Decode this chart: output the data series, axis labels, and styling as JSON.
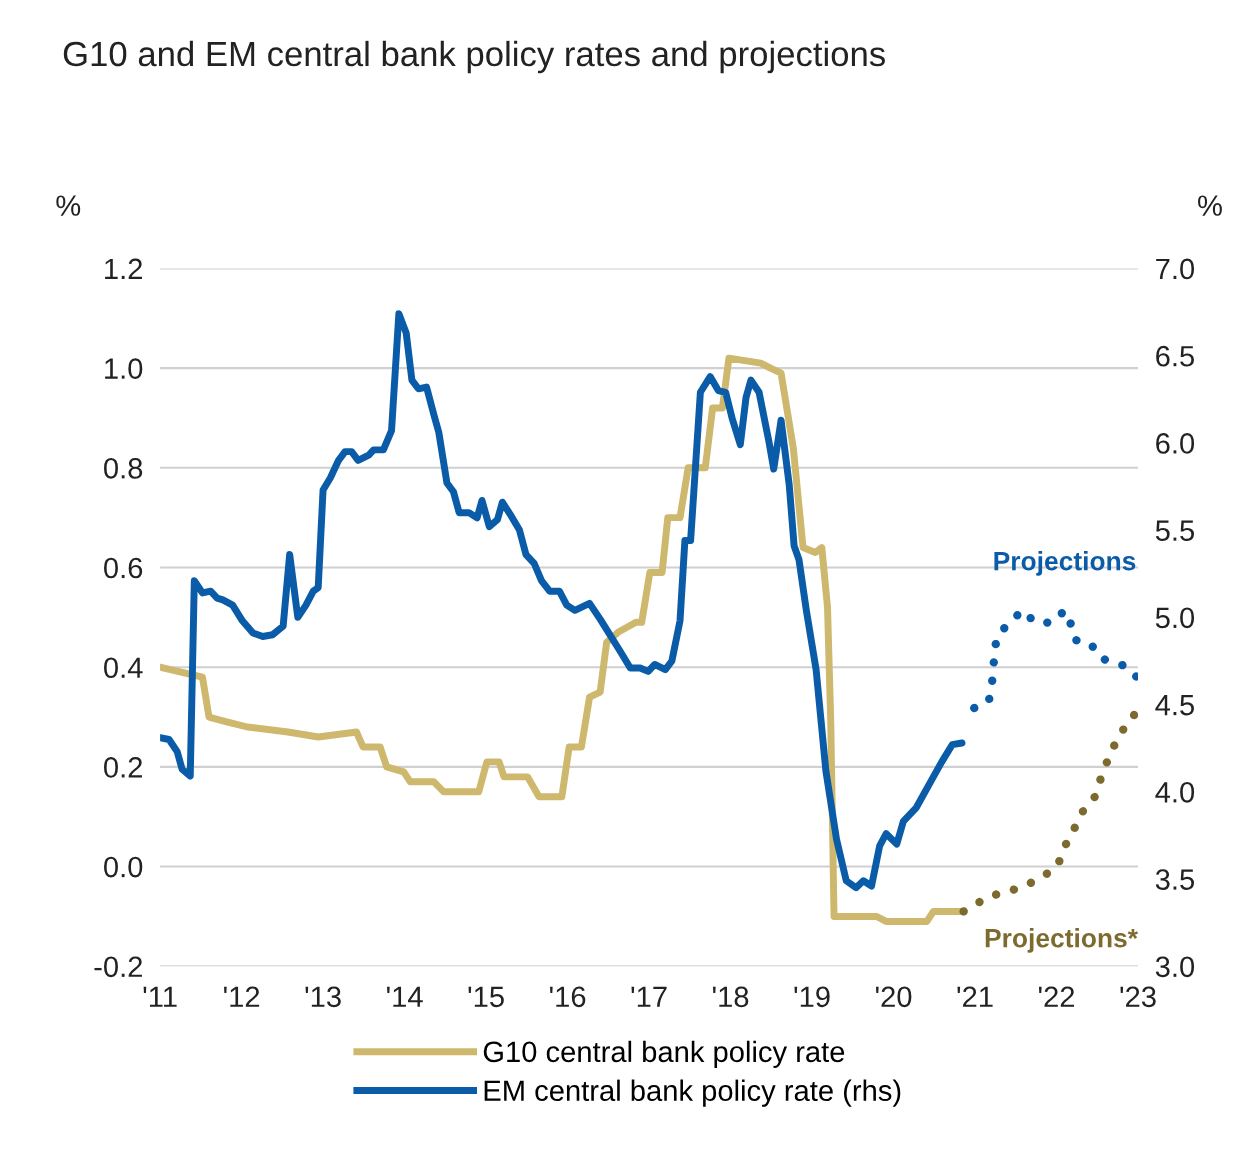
{
  "chart_data": {
    "type": "line",
    "title": "G10 and EM central bank policy rates and projections",
    "ylabel": "%",
    "y2label": "%",
    "xlim": [
      2011,
      2023
    ],
    "xticks": [
      {
        "value": 2011,
        "label": "'11"
      },
      {
        "value": 2012,
        "label": "'12"
      },
      {
        "value": 2013,
        "label": "'13"
      },
      {
        "value": 2014,
        "label": "'14"
      },
      {
        "value": 2015,
        "label": "'15"
      },
      {
        "value": 2016,
        "label": "'16"
      },
      {
        "value": 2017,
        "label": "'17"
      },
      {
        "value": 2018,
        "label": "'18"
      },
      {
        "value": 2019,
        "label": "'19"
      },
      {
        "value": 2020,
        "label": "'20"
      },
      {
        "value": 2021,
        "label": "'21"
      },
      {
        "value": 2022,
        "label": "'22"
      },
      {
        "value": 2023,
        "label": "'23"
      }
    ],
    "ylim": [
      -0.2,
      1.2
    ],
    "yticks": [
      {
        "value": -0.2,
        "label": "-0.2"
      },
      {
        "value": 0.0,
        "label": "0.0"
      },
      {
        "value": 0.2,
        "label": "0.2"
      },
      {
        "value": 0.4,
        "label": "0.4"
      },
      {
        "value": 0.6,
        "label": "0.6"
      },
      {
        "value": 0.8,
        "label": "0.8"
      },
      {
        "value": 1.0,
        "label": "1.0"
      },
      {
        "value": 1.2,
        "label": "1.2"
      }
    ],
    "y2lim": [
      3.0,
      7.0
    ],
    "y2ticks": [
      {
        "value": 3.0,
        "label": "3.0"
      },
      {
        "value": 3.5,
        "label": "3.5"
      },
      {
        "value": 4.0,
        "label": "4.0"
      },
      {
        "value": 4.5,
        "label": "4.5"
      },
      {
        "value": 5.0,
        "label": "5.0"
      },
      {
        "value": 5.5,
        "label": "5.5"
      },
      {
        "value": 6.0,
        "label": "6.0"
      },
      {
        "value": 6.5,
        "label": "6.5"
      },
      {
        "value": 7.0,
        "label": "7.0"
      }
    ],
    "grid": "y",
    "legend": "bottom",
    "series": [
      {
        "name": "G10 central bank policy rate",
        "color": "#cdb86e",
        "line_style": "solid",
        "x": [
          2011.0,
          2011.52,
          2011.6,
          2011.83,
          2012.07,
          2012.57,
          2012.94,
          2013.41,
          2013.49,
          2013.7,
          2013.78,
          2013.99,
          2014.07,
          2014.36,
          2014.48,
          2014.91,
          2015.01,
          2015.16,
          2015.22,
          2015.51,
          2015.65,
          2015.93,
          2016.02,
          2016.17,
          2016.27,
          2016.4,
          2016.48,
          2016.62,
          2016.84,
          2016.91,
          2017.01,
          2017.16,
          2017.23,
          2017.38,
          2017.48,
          2017.69,
          2017.78,
          2017.9,
          2017.98,
          2018.37,
          2018.49,
          2018.62,
          2018.77,
          2018.89,
          2019.04,
          2019.12,
          2019.19,
          2019.23,
          2019.27,
          2019.42,
          2019.79,
          2019.91,
          2020.41,
          2020.49,
          2020.86
        ],
        "values": [
          0.4,
          0.38,
          0.3,
          0.29,
          0.28,
          0.27,
          0.26,
          0.27,
          0.24,
          0.24,
          0.2,
          0.19,
          0.17,
          0.17,
          0.15,
          0.15,
          0.21,
          0.21,
          0.18,
          0.18,
          0.14,
          0.14,
          0.24,
          0.24,
          0.34,
          0.35,
          0.45,
          0.47,
          0.49,
          0.49,
          0.59,
          0.59,
          0.7,
          0.7,
          0.8,
          0.8,
          0.92,
          0.92,
          1.02,
          1.01,
          1.0,
          0.99,
          0.84,
          0.64,
          0.63,
          0.64,
          0.52,
          0.29,
          -0.1,
          -0.1,
          -0.1,
          -0.11,
          -0.11,
          -0.09,
          -0.09
        ]
      },
      {
        "name": "EM central bank policy rate (rhs)",
        "color": "#0a5ca8",
        "axis": "y2",
        "line_style": "solid",
        "x": [
          2011.0,
          2011.11,
          2011.21,
          2011.27,
          2011.37,
          2011.42,
          2011.52,
          2011.62,
          2011.7,
          2011.77,
          2011.89,
          2012.01,
          2012.14,
          2012.26,
          2012.38,
          2012.51,
          2012.59,
          2012.69,
          2012.79,
          2012.88,
          2012.94,
          2013.0,
          2013.09,
          2013.19,
          2013.27,
          2013.35,
          2013.43,
          2013.56,
          2013.62,
          2013.74,
          2013.84,
          2013.93,
          2014.02,
          2014.09,
          2014.17,
          2014.27,
          2014.36,
          2014.42,
          2014.52,
          2014.6,
          2014.67,
          2014.79,
          2014.89,
          2014.95,
          2015.04,
          2015.14,
          2015.2,
          2015.31,
          2015.41,
          2015.49,
          2015.59,
          2015.68,
          2015.78,
          2015.9,
          2015.99,
          2016.09,
          2016.27,
          2016.4,
          2016.64,
          2016.77,
          2016.89,
          2016.99,
          2017.07,
          2017.2,
          2017.28,
          2017.38,
          2017.44,
          2017.51,
          2017.63,
          2017.75,
          2017.85,
          2017.94,
          2018.02,
          2018.12,
          2018.19,
          2018.25,
          2018.35,
          2018.47,
          2018.53,
          2018.62,
          2018.72,
          2018.78,
          2018.84,
          2018.93,
          2019.05,
          2019.17,
          2019.3,
          2019.42,
          2019.54,
          2019.63,
          2019.73,
          2019.83,
          2019.91,
          2020.04,
          2020.12,
          2020.28,
          2020.47,
          2020.59,
          2020.72,
          2020.84
        ],
        "values": [
          4.31,
          4.3,
          4.23,
          4.13,
          4.09,
          5.21,
          5.14,
          5.15,
          5.11,
          5.1,
          5.07,
          4.98,
          4.91,
          4.89,
          4.9,
          4.95,
          5.36,
          5.0,
          5.07,
          5.15,
          5.17,
          5.73,
          5.8,
          5.9,
          5.95,
          5.95,
          5.9,
          5.93,
          5.96,
          5.96,
          6.07,
          6.74,
          6.63,
          6.36,
          6.31,
          6.32,
          6.16,
          6.06,
          5.77,
          5.72,
          5.6,
          5.6,
          5.57,
          5.67,
          5.52,
          5.56,
          5.66,
          5.58,
          5.5,
          5.36,
          5.31,
          5.21,
          5.15,
          5.15,
          5.07,
          5.04,
          5.08,
          4.99,
          4.81,
          4.71,
          4.71,
          4.69,
          4.73,
          4.7,
          4.75,
          4.98,
          5.44,
          5.44,
          6.29,
          6.38,
          6.3,
          6.29,
          6.14,
          5.99,
          6.26,
          6.36,
          6.29,
          6.01,
          5.85,
          6.13,
          5.76,
          5.41,
          5.33,
          5.04,
          4.7,
          4.12,
          3.73,
          3.49,
          3.45,
          3.49,
          3.46,
          3.69,
          3.76,
          3.7,
          3.83,
          3.91,
          4.07,
          4.17,
          4.27,
          4.28
        ]
      },
      {
        "name": "Projections*",
        "color": "#7d6a2e",
        "line_style": "dotted",
        "x": [
          2020.86,
          2021.17,
          2021.4,
          2021.6,
          2021.83,
          2022.01,
          2022.1,
          2022.2,
          2022.32,
          2022.47,
          2022.57,
          2022.67,
          2022.79,
          2022.91,
          2023.0
        ],
        "values": [
          -0.09,
          -0.06,
          -0.05,
          -0.04,
          -0.02,
          0.0,
          0.04,
          0.07,
          0.11,
          0.14,
          0.19,
          0.23,
          0.27,
          0.29,
          0.32
        ]
      },
      {
        "name": "Projections",
        "color": "#0a5ca8",
        "axis": "y2",
        "line_style": "dotted",
        "x": [
          2020.99,
          2021.17,
          2021.21,
          2021.23,
          2021.25,
          2021.3,
          2021.43,
          2021.58,
          2021.74,
          2021.95,
          2022.1,
          2022.17,
          2022.23,
          2022.42,
          2022.53,
          2022.69,
          2022.86,
          2022.98
        ],
        "values": [
          4.48,
          4.52,
          4.63,
          4.74,
          4.84,
          4.91,
          4.97,
          5.04,
          4.97,
          4.97,
          5.04,
          4.97,
          4.87,
          4.85,
          4.77,
          4.74,
          4.72,
          4.66
        ]
      }
    ]
  }
}
